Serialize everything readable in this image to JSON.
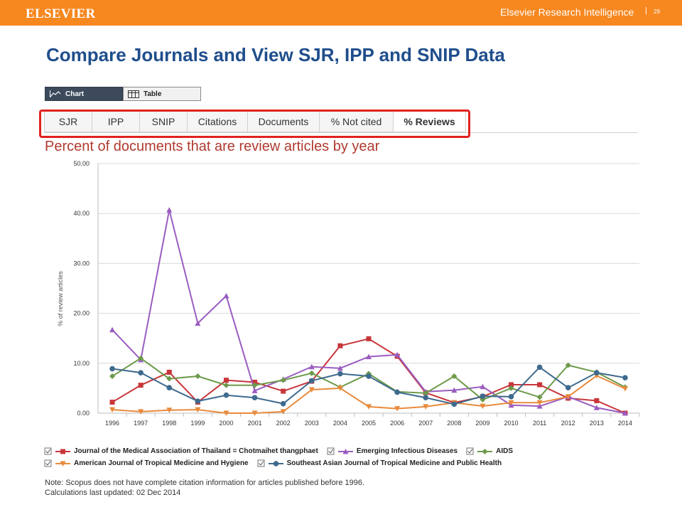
{
  "header": {
    "brand": "ELSEVIER",
    "sub_brand": "Elsevier Research Intelligence",
    "separator": "|",
    "page_number": "29"
  },
  "title": "Compare Journals and View SJR, IPP and SNIP Data",
  "view_toggle": [
    {
      "label": "Chart",
      "active": true,
      "icon": "chart-icon"
    },
    {
      "label": "Table",
      "active": false,
      "icon": "table-icon"
    }
  ],
  "tabs": [
    {
      "label": "SJR",
      "active": false
    },
    {
      "label": "IPP",
      "active": false
    },
    {
      "label": "SNIP",
      "active": false
    },
    {
      "label": "Citations",
      "active": false
    },
    {
      "label": "Documents",
      "active": false
    },
    {
      "label": "% Not cited",
      "active": false
    },
    {
      "label": "% Reviews",
      "active": true
    }
  ],
  "colors": {
    "header_orange": "#f7871f",
    "title_blue": "#1f4e8c",
    "heading_red": "#b03a2e",
    "highlight_red": "#e0221f"
  },
  "chart_data": {
    "type": "line",
    "title": "Percent of documents that are review articles by year",
    "ylabel": "% of review articles",
    "xlabel": "",
    "ylim": [
      0,
      50
    ],
    "yticks": [
      "0.00",
      "10.00",
      "20.00",
      "30.00",
      "40.00",
      "50.00"
    ],
    "grid": true,
    "legend_position": "bottom",
    "categories": [
      "1996",
      "1997",
      "1998",
      "1999",
      "2000",
      "2001",
      "2002",
      "2003",
      "2004",
      "2005",
      "2006",
      "2007",
      "2008",
      "2009",
      "2010",
      "2011",
      "2012",
      "2013",
      "2014"
    ],
    "series": [
      {
        "name": "Journal of the Medical Association of Thailand = Chotmaihet thangphaet",
        "color": "#c8363a",
        "marker": "square",
        "values": [
          2.2,
          5.6,
          8.2,
          2.2,
          6.6,
          6.2,
          4.4,
          6.4,
          13.5,
          14.9,
          11.4,
          4.1,
          2.1,
          3.3,
          5.7,
          5.7,
          3.0,
          2.5,
          0.0
        ]
      },
      {
        "name": "Emerging Infectious Diseases",
        "color": "#9a5cc0",
        "marker": "triangle-up",
        "values": [
          16.7,
          10.7,
          40.7,
          18.0,
          23.5,
          4.5,
          6.8,
          9.3,
          9.0,
          11.3,
          11.7,
          4.3,
          4.6,
          5.3,
          1.6,
          1.4,
          3.3,
          1.1,
          0.0
        ]
      },
      {
        "name": "AIDS",
        "color": "#6c9a4a",
        "marker": "diamond",
        "values": [
          7.4,
          11.0,
          6.9,
          7.4,
          5.6,
          5.6,
          6.6,
          8.0,
          5.2,
          7.9,
          4.3,
          4.0,
          7.4,
          2.7,
          5.0,
          3.2,
          9.6,
          8.2,
          5.2
        ]
      },
      {
        "name": "American Journal of Tropical Medicine and Hygiene",
        "color": "#e88a3c",
        "marker": "triangle-down",
        "values": [
          0.7,
          0.3,
          0.6,
          0.7,
          0.0,
          0.0,
          0.3,
          4.7,
          5.0,
          1.3,
          0.9,
          1.3,
          2.1,
          1.4,
          2.1,
          2.1,
          3.3,
          7.5,
          4.9
        ]
      },
      {
        "name": "Southeast Asian Journal of Tropical Medicine and Public Health",
        "color": "#3e6a8e",
        "marker": "circle",
        "values": [
          8.9,
          8.1,
          5.1,
          2.4,
          3.6,
          3.1,
          1.9,
          6.5,
          7.9,
          7.4,
          4.2,
          3.1,
          1.8,
          3.4,
          3.3,
          9.2,
          5.1,
          8.1,
          7.1
        ]
      }
    ]
  },
  "notes": [
    "Note: Scopus does not have complete citation information for articles published before 1996.",
    "Calculations last updated: 02 Dec 2014"
  ]
}
